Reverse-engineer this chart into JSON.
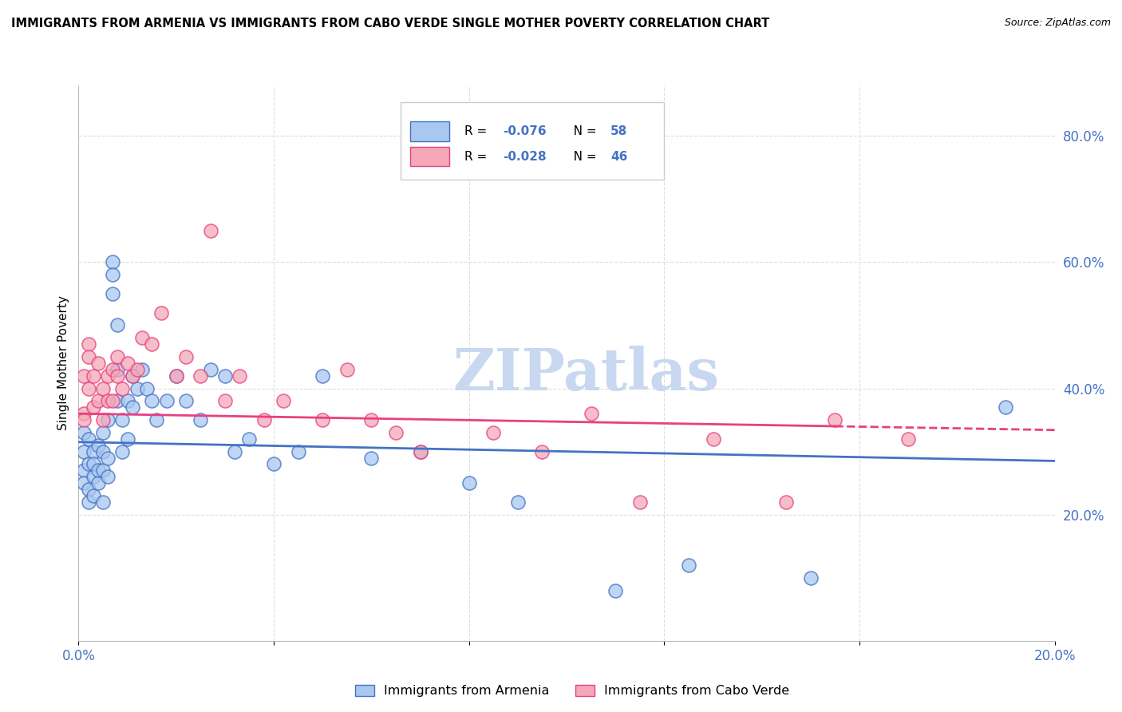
{
  "title": "IMMIGRANTS FROM ARMENIA VS IMMIGRANTS FROM CABO VERDE SINGLE MOTHER POVERTY CORRELATION CHART",
  "source": "Source: ZipAtlas.com",
  "ylabel": "Single Mother Poverty",
  "legend_label_1": "Immigrants from Armenia",
  "legend_label_2": "Immigrants from Cabo Verde",
  "r1": -0.076,
  "n1": 58,
  "r2": -0.028,
  "n2": 46,
  "color1": "#A8C8F0",
  "color2": "#F4A8B8",
  "line_color1": "#4472C4",
  "line_color2": "#E84080",
  "xlim": [
    0.0,
    0.2
  ],
  "ylim": [
    0.0,
    0.88
  ],
  "watermark": "ZIPatlas",
  "watermark_color": "#C8D8F0",
  "background_color": "#FFFFFF",
  "grid_color": "#DDDDDD",
  "text_color_blue": "#4472C4",
  "armenia_x": [
    0.001,
    0.001,
    0.001,
    0.001,
    0.002,
    0.002,
    0.002,
    0.002,
    0.003,
    0.003,
    0.003,
    0.003,
    0.004,
    0.004,
    0.004,
    0.005,
    0.005,
    0.005,
    0.005,
    0.006,
    0.006,
    0.006,
    0.007,
    0.007,
    0.007,
    0.008,
    0.008,
    0.008,
    0.009,
    0.009,
    0.01,
    0.01,
    0.011,
    0.011,
    0.012,
    0.013,
    0.014,
    0.015,
    0.016,
    0.018,
    0.02,
    0.022,
    0.025,
    0.027,
    0.03,
    0.032,
    0.035,
    0.04,
    0.045,
    0.05,
    0.06,
    0.07,
    0.08,
    0.09,
    0.11,
    0.125,
    0.15,
    0.19
  ],
  "armenia_y": [
    0.3,
    0.27,
    0.33,
    0.25,
    0.32,
    0.28,
    0.24,
    0.22,
    0.3,
    0.26,
    0.23,
    0.28,
    0.31,
    0.25,
    0.27,
    0.33,
    0.3,
    0.27,
    0.22,
    0.35,
    0.29,
    0.26,
    0.6,
    0.58,
    0.55,
    0.5,
    0.43,
    0.38,
    0.35,
    0.3,
    0.38,
    0.32,
    0.42,
    0.37,
    0.4,
    0.43,
    0.4,
    0.38,
    0.35,
    0.38,
    0.42,
    0.38,
    0.35,
    0.43,
    0.42,
    0.3,
    0.32,
    0.28,
    0.3,
    0.42,
    0.29,
    0.3,
    0.25,
    0.22,
    0.08,
    0.12,
    0.1,
    0.37
  ],
  "caboverde_x": [
    0.001,
    0.001,
    0.001,
    0.002,
    0.002,
    0.002,
    0.003,
    0.003,
    0.004,
    0.004,
    0.005,
    0.005,
    0.006,
    0.006,
    0.007,
    0.007,
    0.008,
    0.008,
    0.009,
    0.01,
    0.011,
    0.012,
    0.013,
    0.015,
    0.017,
    0.02,
    0.022,
    0.025,
    0.027,
    0.03,
    0.033,
    0.038,
    0.042,
    0.05,
    0.055,
    0.06,
    0.065,
    0.07,
    0.085,
    0.095,
    0.105,
    0.115,
    0.13,
    0.145,
    0.155,
    0.17
  ],
  "caboverde_y": [
    0.36,
    0.42,
    0.35,
    0.47,
    0.4,
    0.45,
    0.37,
    0.42,
    0.38,
    0.44,
    0.4,
    0.35,
    0.42,
    0.38,
    0.43,
    0.38,
    0.45,
    0.42,
    0.4,
    0.44,
    0.42,
    0.43,
    0.48,
    0.47,
    0.52,
    0.42,
    0.45,
    0.42,
    0.65,
    0.38,
    0.42,
    0.35,
    0.38,
    0.35,
    0.43,
    0.35,
    0.33,
    0.3,
    0.33,
    0.3,
    0.36,
    0.22,
    0.32,
    0.22,
    0.35,
    0.32
  ]
}
